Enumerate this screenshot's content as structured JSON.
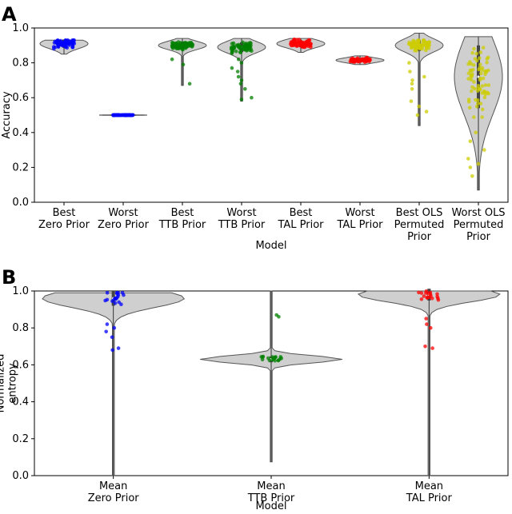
{
  "chart_data": [
    {
      "panel": "A",
      "type": "violin",
      "xlabel": "Model",
      "ylabel": "Accuracy",
      "ylim": [
        0.0,
        1.0
      ],
      "yticks": [
        "0.0",
        "0.2",
        "0.4",
        "0.6",
        "0.8",
        "1.0"
      ],
      "categories": [
        {
          "label": [
            "Best",
            "Zero Prior"
          ],
          "color": "#0000ff",
          "median": 0.91,
          "min": 0.85,
          "max": 0.93,
          "spread": 0.06,
          "outliers": []
        },
        {
          "label": [
            "Worst",
            "Zero Prior"
          ],
          "color": "#0000ff",
          "median": 0.5,
          "min": 0.495,
          "max": 0.505,
          "spread": 0.003,
          "outliers": []
        },
        {
          "label": [
            "Best",
            "TTB Prior"
          ],
          "color": "#008000",
          "median": 0.9,
          "min": 0.67,
          "max": 0.94,
          "spread": 0.05,
          "outliers": [
            0.68,
            0.79,
            0.82
          ]
        },
        {
          "label": [
            "Worst",
            "TTB Prior"
          ],
          "color": "#008000",
          "median": 0.89,
          "min": 0.58,
          "max": 0.94,
          "spread": 0.07,
          "outliers": [
            0.59,
            0.6,
            0.65,
            0.68,
            0.7,
            0.72,
            0.75,
            0.77,
            0.8,
            0.82
          ]
        },
        {
          "label": [
            "Best",
            "TAL Prior"
          ],
          "color": "#ff0000",
          "median": 0.91,
          "min": 0.86,
          "max": 0.94,
          "spread": 0.05,
          "outliers": []
        },
        {
          "label": [
            "Worst",
            "TAL Prior"
          ],
          "color": "#ff0000",
          "median": 0.815,
          "min": 0.79,
          "max": 0.84,
          "spread": 0.03,
          "outliers": []
        },
        {
          "label": [
            "Best OLS",
            "Permuted",
            "Prior"
          ],
          "color": "#cccc00",
          "median": 0.9,
          "min": 0.44,
          "max": 0.97,
          "spread": 0.08,
          "outliers": [
            0.5,
            0.52,
            0.55,
            0.58,
            0.65,
            0.68,
            0.7,
            0.72,
            0.75,
            0.8
          ]
        },
        {
          "label": [
            "Worst OLS",
            "Permuted",
            "Prior"
          ],
          "color": "#cccc00",
          "median": 0.72,
          "min": 0.07,
          "max": 0.95,
          "spread": 0.45,
          "outliers": [
            0.15,
            0.2,
            0.22,
            0.25,
            0.3,
            0.35,
            0.4
          ]
        }
      ]
    },
    {
      "panel": "B",
      "type": "violin",
      "xlabel": "Model",
      "ylabel": [
        "Normalized",
        "entropy"
      ],
      "ylim": [
        0.0,
        1.0
      ],
      "yticks": [
        "0.0",
        "0.2",
        "0.4",
        "0.6",
        "0.8",
        "1.0"
      ],
      "categories": [
        {
          "label": [
            "Mean",
            "Zero Prior"
          ],
          "color": "#0000ff",
          "median": 0.96,
          "min": 0.0,
          "max": 0.99,
          "spread": 0.1,
          "outliers": [
            0.69,
            0.68,
            0.75,
            0.78,
            0.8,
            0.82
          ]
        },
        {
          "label": [
            "Mean",
            "TTB Prior"
          ],
          "color": "#008000",
          "median": 0.63,
          "min": 0.075,
          "max": 1.0,
          "spread": 0.04,
          "outliers": [
            0.86,
            0.87
          ]
        },
        {
          "label": [
            "Mean",
            "TAL Prior"
          ],
          "color": "#ff0000",
          "median": 0.98,
          "min": 0.0,
          "max": 1.0,
          "spread": 0.08,
          "outliers": [
            0.69,
            0.7,
            0.8,
            0.82,
            0.85
          ]
        }
      ]
    }
  ]
}
